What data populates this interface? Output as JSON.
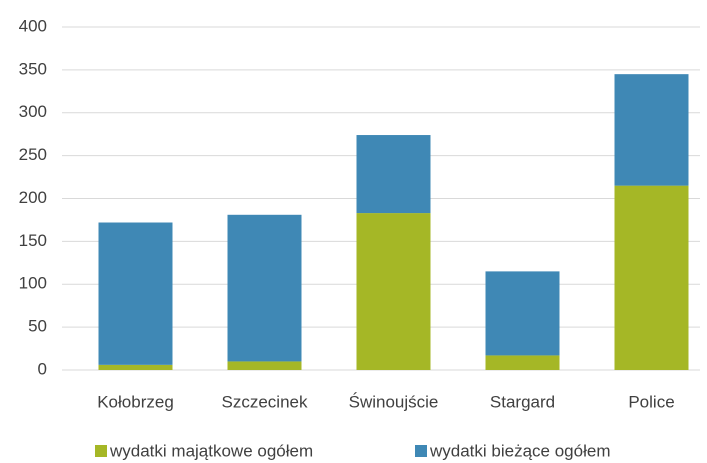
{
  "chart_data": {
    "type": "bar",
    "stacked": true,
    "categories": [
      "Kołobrzeg",
      "Szczecinek",
      "Świnoujście",
      "Stargard",
      "Police"
    ],
    "series": [
      {
        "name": "wydatki majątkowe ogółem",
        "color": "#a5b726",
        "values": [
          6,
          10,
          183,
          17,
          215
        ]
      },
      {
        "name": "wydatki bieżące ogółem",
        "color": "#3f88b5",
        "values": [
          166,
          171,
          91,
          98,
          130
        ]
      }
    ],
    "ylim": [
      0,
      400
    ],
    "yticks": [
      0,
      50,
      100,
      150,
      200,
      250,
      300,
      350,
      400
    ],
    "grid": true
  }
}
